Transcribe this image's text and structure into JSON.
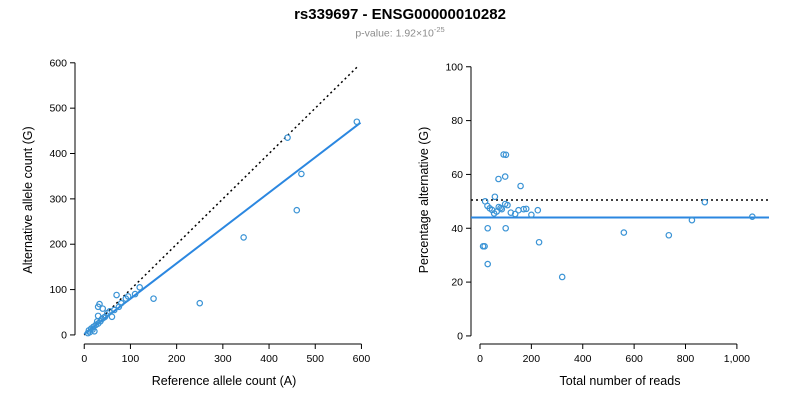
{
  "header": {
    "title": "rs339697 - ENSG00000010282",
    "pvalue_text": "p-value: 1.92×10",
    "pvalue_exponent": "-25"
  },
  "colors": {
    "point": "#3a93d5",
    "fit_line": "#2b87e0",
    "reference_line": "#000000",
    "axis": "#000000",
    "subtitle": "#8c8c8c"
  },
  "chart_data": [
    {
      "type": "scatter",
      "name": "allele-counts",
      "xlabel": "Reference allele count (A)",
      "ylabel": "Alternative allele count (G)",
      "xlim": [
        -20,
        625
      ],
      "ylim": [
        -20,
        615
      ],
      "grid": false,
      "xticks": {
        "values": [
          0,
          100,
          200,
          300,
          400,
          500,
          600
        ],
        "labels": [
          "0",
          "100",
          "200",
          "300",
          "400",
          "500",
          "600"
        ]
      },
      "yticks": {
        "values": [
          0,
          100,
          200,
          300,
          400,
          500,
          600
        ],
        "labels": [
          "0",
          "100",
          "200",
          "300",
          "400",
          "500",
          "600"
        ]
      },
      "points": [
        [
          8,
          4
        ],
        [
          10,
          10
        ],
        [
          12,
          6
        ],
        [
          15,
          14
        ],
        [
          18,
          12
        ],
        [
          20,
          18
        ],
        [
          22,
          8
        ],
        [
          25,
          22
        ],
        [
          28,
          30
        ],
        [
          30,
          25
        ],
        [
          30,
          42
        ],
        [
          35,
          30
        ],
        [
          38,
          35
        ],
        [
          40,
          58
        ],
        [
          42,
          38
        ],
        [
          45,
          40
        ],
        [
          50,
          48
        ],
        [
          55,
          52
        ],
        [
          60,
          40
        ],
        [
          30,
          62
        ],
        [
          65,
          55
        ],
        [
          70,
          88
        ],
        [
          75,
          62
        ],
        [
          80,
          70
        ],
        [
          90,
          80
        ],
        [
          95,
          85
        ],
        [
          110,
          90
        ],
        [
          120,
          105
        ],
        [
          33,
          68
        ],
        [
          150,
          80
        ],
        [
          250,
          70
        ],
        [
          345,
          215
        ],
        [
          440,
          435
        ],
        [
          460,
          275
        ],
        [
          470,
          355
        ],
        [
          590,
          470
        ]
      ],
      "lines": [
        {
          "name": "identity-line",
          "style": "dotted",
          "color": "#000000",
          "x1": 0,
          "y1": 0,
          "x2": 592,
          "y2": 592
        },
        {
          "name": "fit-line",
          "style": "solid",
          "color": "#2b87e0",
          "x1": 0,
          "y1": 2,
          "x2": 598,
          "y2": 468
        }
      ]
    },
    {
      "type": "scatter",
      "name": "percentage-vs-reads",
      "xlabel": "Total number of reads",
      "ylabel": "Percentage alternative (G)",
      "xlim": [
        -35,
        1125
      ],
      "ylim": [
        -3,
        104
      ],
      "grid": false,
      "xticks": {
        "values": [
          0,
          200,
          400,
          600,
          800,
          1000
        ],
        "labels": [
          "0",
          "200",
          "400",
          "600",
          "800",
          "1,000"
        ]
      },
      "yticks": {
        "values": [
          0,
          20,
          40,
          60,
          80,
          100
        ],
        "labels": [
          "0",
          "20",
          "40",
          "60",
          "80",
          "100"
        ]
      },
      "points": [
        [
          12,
          33.3
        ],
        [
          20,
          50
        ],
        [
          18,
          33.3
        ],
        [
          29,
          48.3
        ],
        [
          30,
          40
        ],
        [
          38,
          47.4
        ],
        [
          30,
          26.7
        ],
        [
          47,
          46.8
        ],
        [
          58,
          51.7
        ],
        [
          55,
          45.5
        ],
        [
          72,
          58.3
        ],
        [
          65,
          46.2
        ],
        [
          73,
          47.9
        ],
        [
          98,
          59.2
        ],
        [
          80,
          47.5
        ],
        [
          85,
          47.1
        ],
        [
          98,
          49
        ],
        [
          107,
          48.6
        ],
        [
          100,
          40
        ],
        [
          92,
          67.4
        ],
        [
          120,
          45.8
        ],
        [
          158,
          55.7
        ],
        [
          137,
          45.3
        ],
        [
          150,
          46.7
        ],
        [
          170,
          47.1
        ],
        [
          180,
          47.2
        ],
        [
          200,
          45
        ],
        [
          225,
          46.7
        ],
        [
          101,
          67.3
        ],
        [
          230,
          34.8
        ],
        [
          320,
          21.9
        ],
        [
          560,
          38.4
        ],
        [
          875,
          49.7
        ],
        [
          735,
          37.4
        ],
        [
          825,
          43
        ],
        [
          1060,
          44.3
        ]
      ],
      "lines": [
        {
          "name": "expected-percentage-line",
          "style": "dotted",
          "color": "#000000",
          "x1": -35,
          "y1": 50.5,
          "x2": 1125,
          "y2": 50.5
        },
        {
          "name": "mean-percentage-line",
          "style": "solid",
          "color": "#2b87e0",
          "x1": -35,
          "y1": 44,
          "x2": 1125,
          "y2": 44
        }
      ]
    }
  ]
}
